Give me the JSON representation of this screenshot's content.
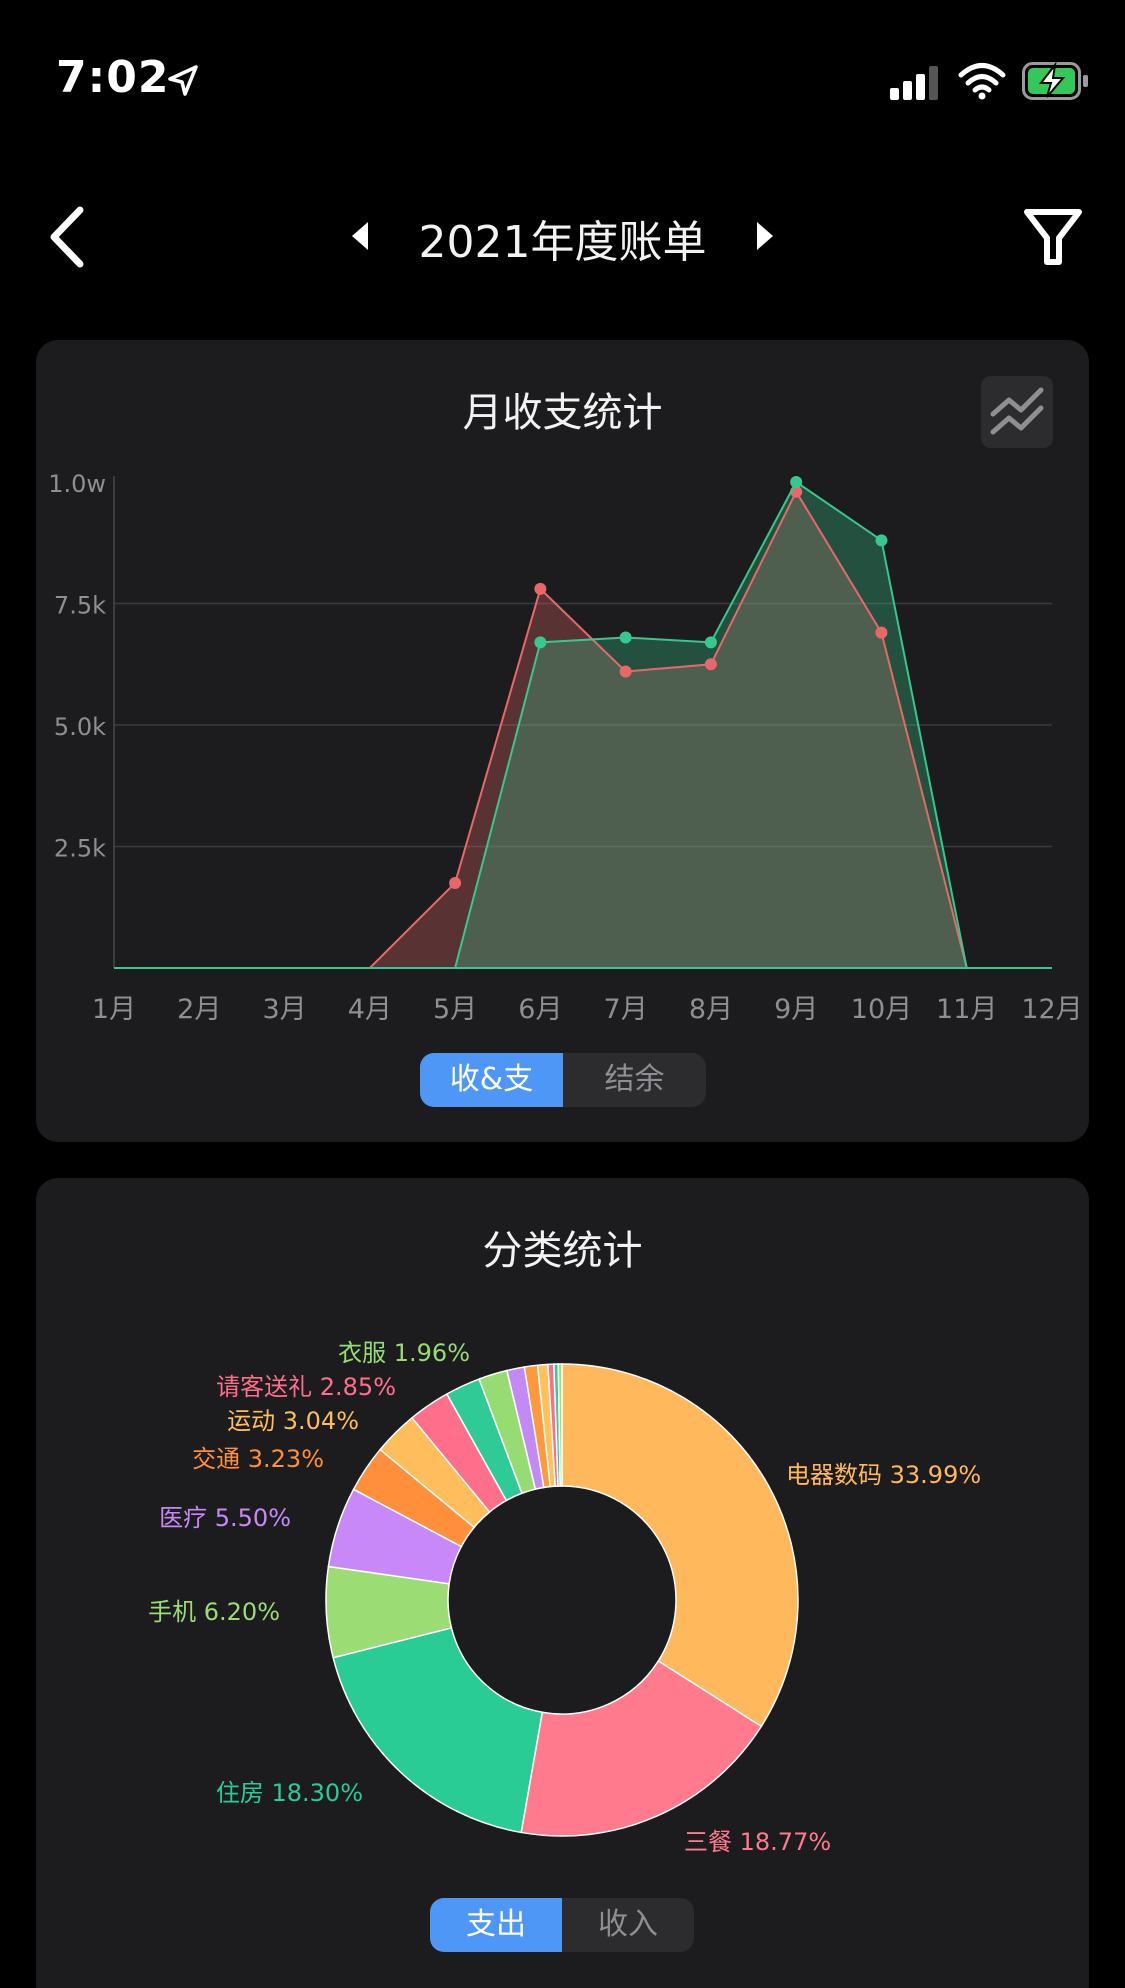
{
  "status_bar": {
    "time": "7:02",
    "icons": [
      "location-arrow-icon",
      "signal-icon",
      "wifi-icon",
      "battery-charging-icon"
    ],
    "battery_color": "#34c759"
  },
  "nav": {
    "title": "2021年度账单"
  },
  "monthly_card": {
    "title": "月收支统计",
    "tabs": [
      {
        "label": "收&支",
        "active": true
      },
      {
        "label": "结余",
        "active": false
      }
    ]
  },
  "category_card": {
    "title": "分类统计",
    "tabs": [
      {
        "label": "支出",
        "active": true
      },
      {
        "label": "收入",
        "active": false
      }
    ]
  },
  "chart_data": [
    {
      "type": "area",
      "title": "月收支统计",
      "categories": [
        "1月",
        "2月",
        "3月",
        "4月",
        "5月",
        "6月",
        "7月",
        "8月",
        "9月",
        "10月",
        "11月",
        "12月"
      ],
      "y_ticks": [
        "2.5k",
        "5.0k",
        "7.5k",
        "1.0w"
      ],
      "ylim": [
        0,
        10000
      ],
      "grid": true,
      "series": [
        {
          "color": "#e8686a",
          "values": [
            0,
            0,
            0,
            0,
            1750,
            7800,
            6100,
            6250,
            9800,
            6900,
            0,
            0
          ]
        },
        {
          "color": "#35c98f",
          "values": [
            0,
            0,
            0,
            0,
            0,
            6700,
            6800,
            6700,
            10000,
            8800,
            0,
            0
          ]
        }
      ]
    },
    {
      "type": "pie",
      "title": "分类统计",
      "donut": true,
      "slices": [
        {
          "label": "电器数码 33.99%",
          "value": 33.99,
          "color": "#ffb85c"
        },
        {
          "label": "三餐 18.77%",
          "value": 18.77,
          "color": "#ff7a8c"
        },
        {
          "label": "住房 18.30%",
          "value": 18.3,
          "color": "#28cc94"
        },
        {
          "label": "手机 6.20%",
          "value": 6.2,
          "color": "#9bdc74"
        },
        {
          "label": "医疗 5.50%",
          "value": 5.5,
          "color": "#c888f7"
        },
        {
          "label": "交通 3.23%",
          "value": 3.23,
          "color": "#ff8f3a"
        },
        {
          "label": "运动 3.04%",
          "value": 3.04,
          "color": "#ffbd5b"
        },
        {
          "label": "请客送礼 2.85%",
          "value": 2.85,
          "color": "#ff6f8b"
        },
        {
          "label": "",
          "value": 2.4,
          "color": "#2ecb96"
        },
        {
          "label": "衣服 1.96%",
          "value": 1.96,
          "color": "#97dc73"
        },
        {
          "label": "",
          "value": 1.2,
          "color": "#c38af6"
        },
        {
          "label": "",
          "value": 0.9,
          "color": "#ff9a3c"
        },
        {
          "label": "",
          "value": 0.7,
          "color": "#ffc15a"
        },
        {
          "label": "",
          "value": 0.4,
          "color": "#ff6d89"
        },
        {
          "label": "",
          "value": 0.3,
          "color": "#34cc96"
        },
        {
          "label": "",
          "value": 0.25,
          "color": "#9ddd76"
        }
      ]
    }
  ]
}
